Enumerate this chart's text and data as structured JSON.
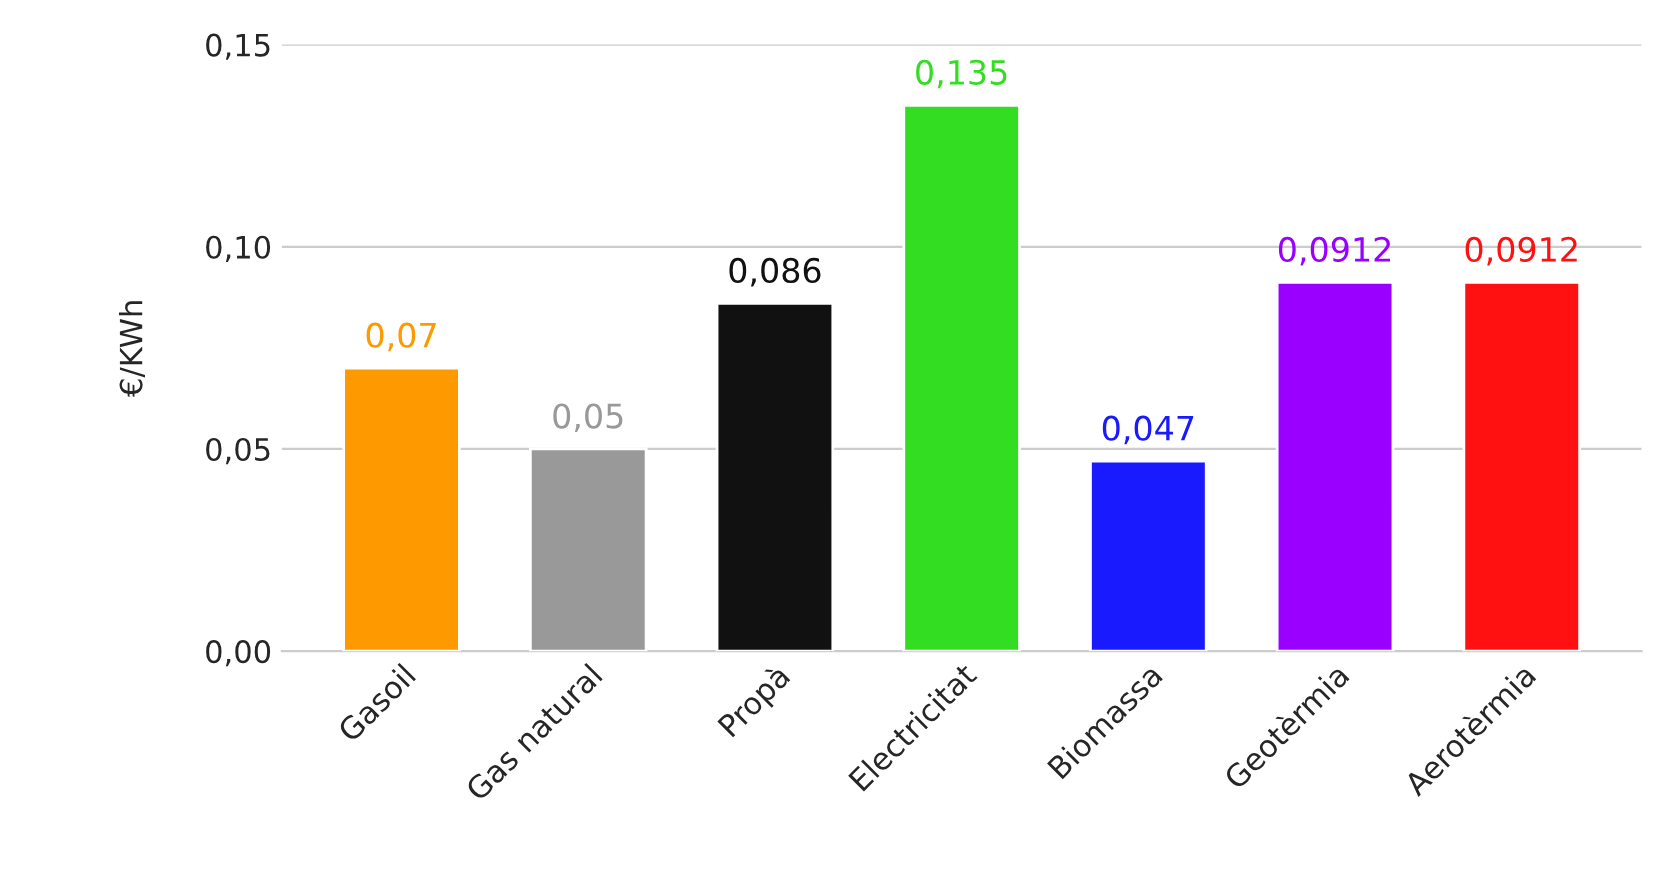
{
  "chart_data": {
    "type": "bar",
    "ylabel": "€/KWh",
    "categories": [
      "Gasoil",
      "Gas natural",
      "Propà",
      "Electricitat",
      "Biomassa",
      "Geotèrmia",
      "Aerotèrmia"
    ],
    "values": [
      0.07,
      0.05,
      0.086,
      0.135,
      0.047,
      0.0912,
      0.0912
    ],
    "value_labels": [
      "0,07",
      "0,05",
      "0,086",
      "0,135",
      "0,047",
      "0,0912",
      "0,0912"
    ],
    "colors": [
      "#ff9900",
      "#999999",
      "#111111",
      "#33dd22",
      "#1a1aff",
      "#9900ff",
      "#ff1111"
    ],
    "ylim": [
      0,
      0.15
    ],
    "yticks": [
      {
        "value": 0,
        "label": "0,00"
      },
      {
        "value": 0.05,
        "label": "0,05"
      },
      {
        "value": 0.1,
        "label": "0,10"
      },
      {
        "value": 0.15,
        "label": "0,15"
      }
    ],
    "grid": "y"
  }
}
